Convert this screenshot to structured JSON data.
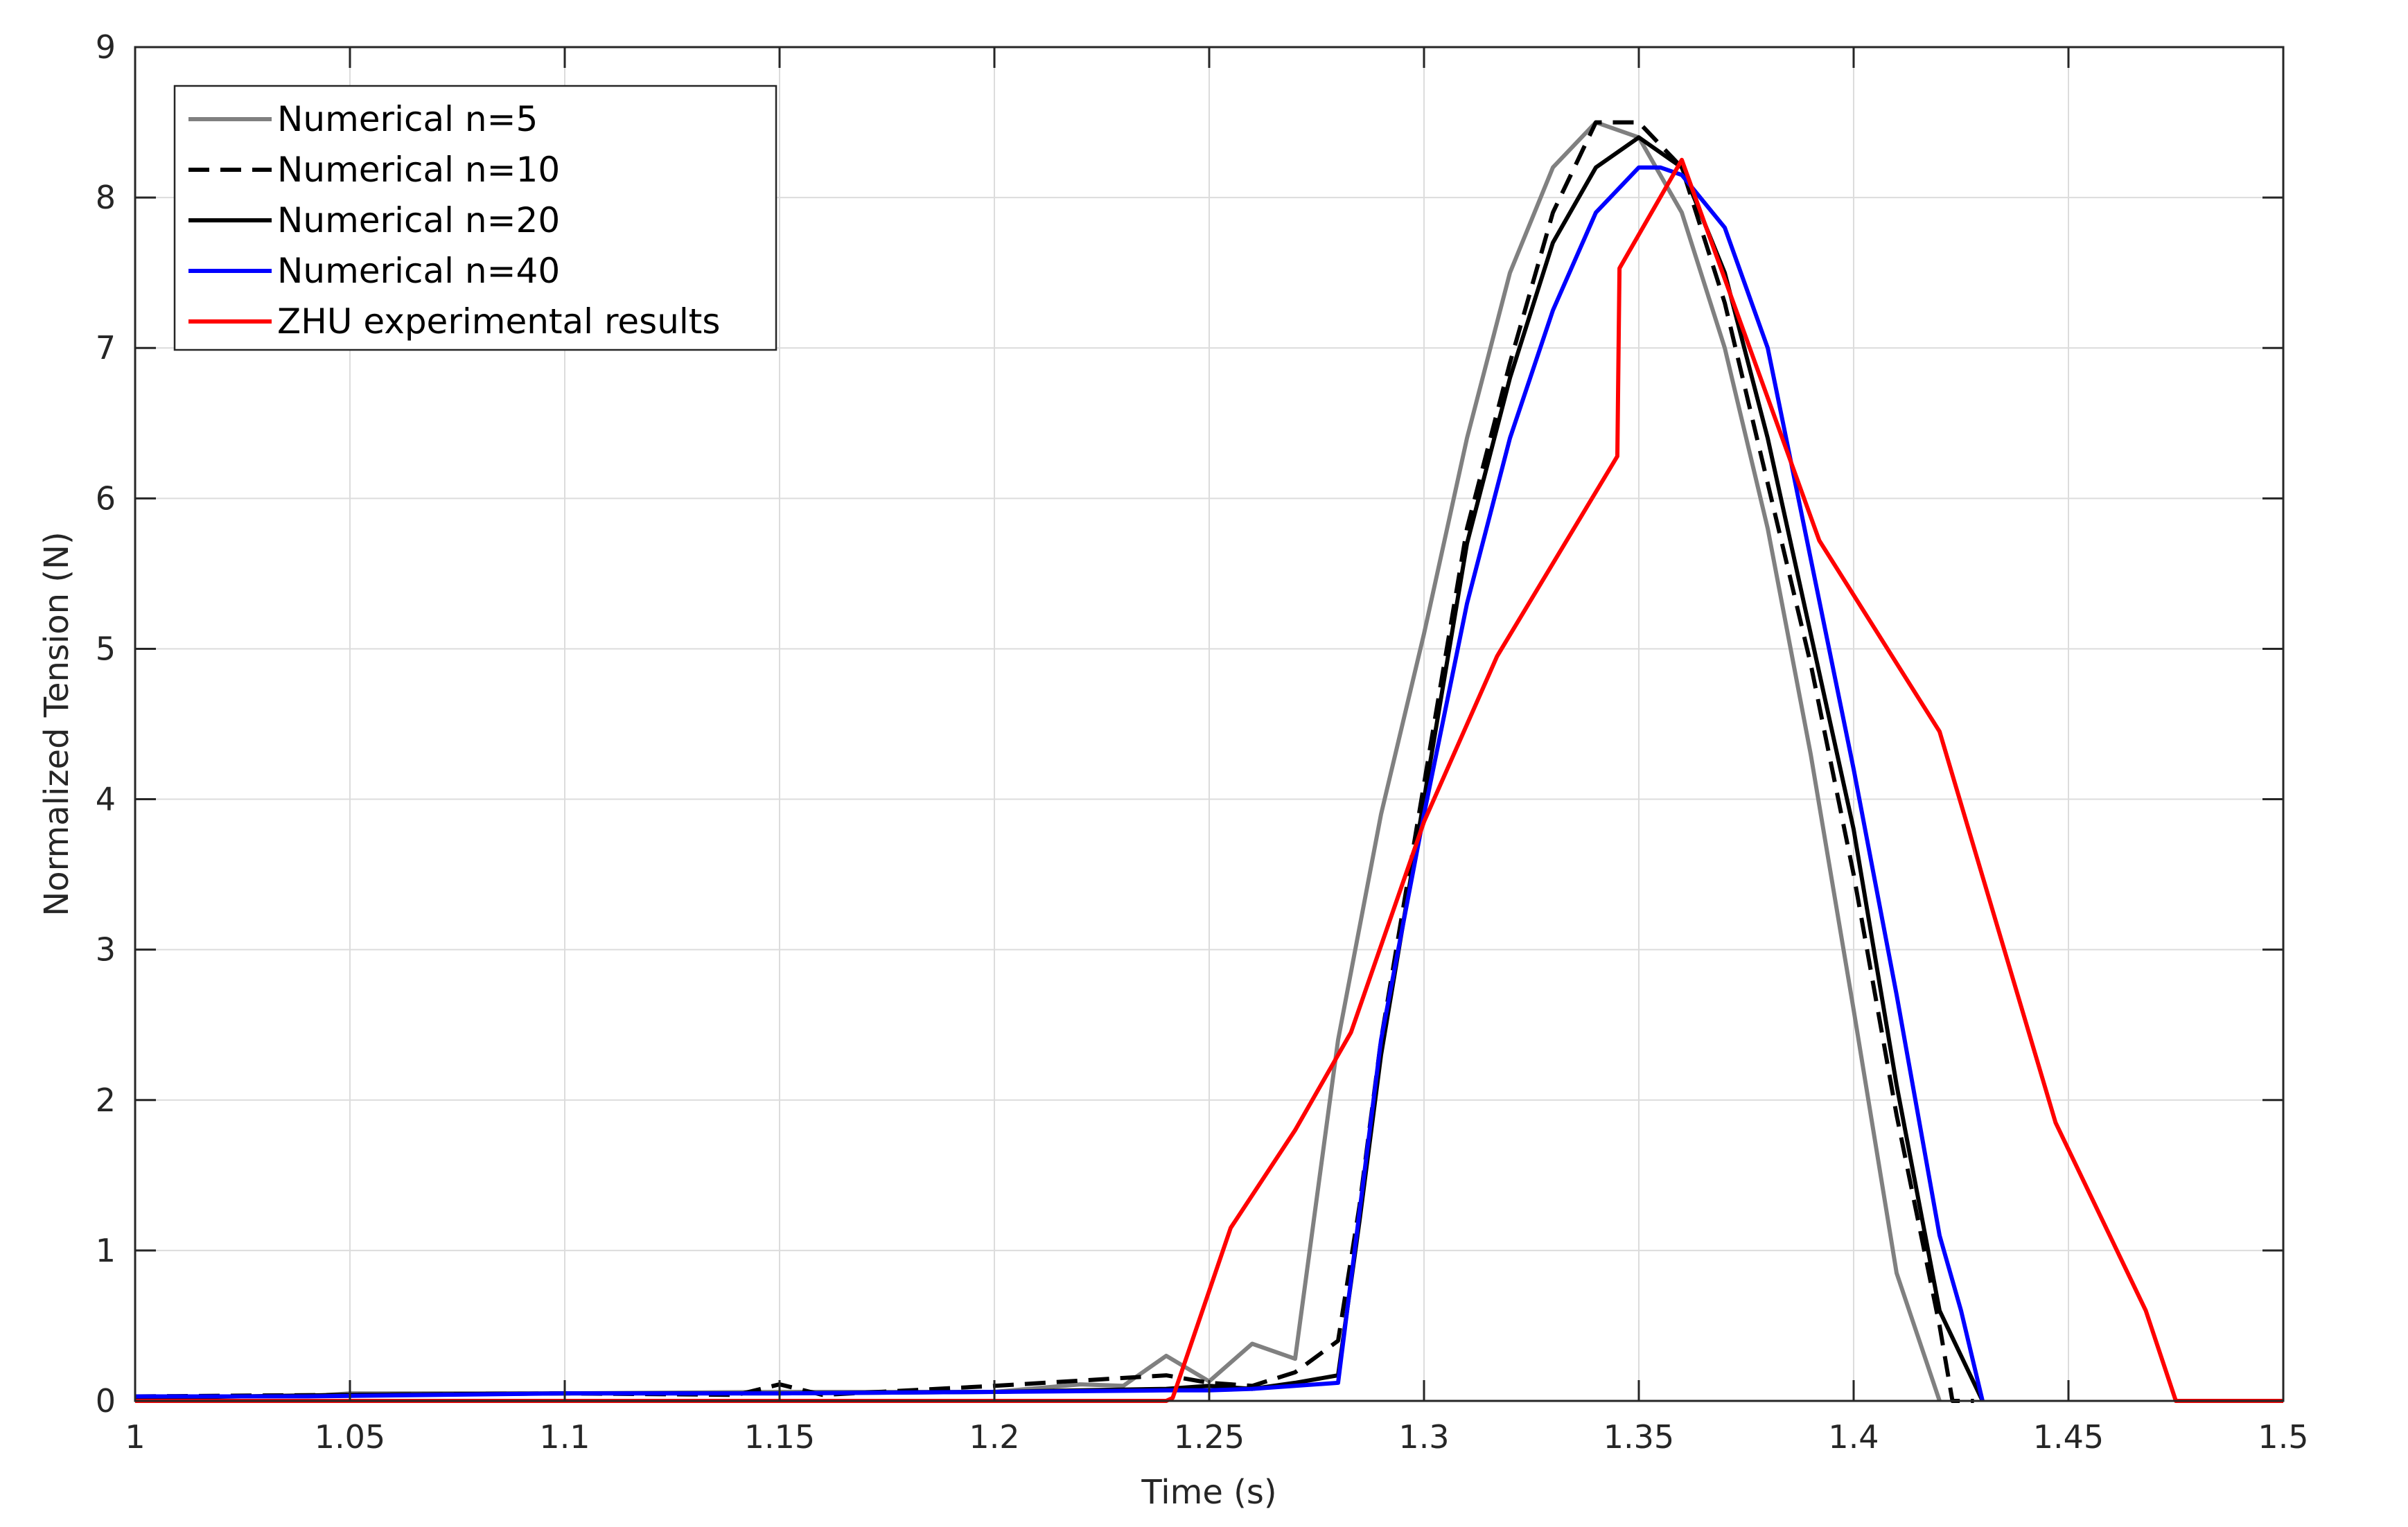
{
  "chart_data": {
    "type": "line",
    "title": "",
    "xlabel": "Time (s)",
    "ylabel": "Normalized Tension (N)",
    "xlim": [
      1,
      1.5
    ],
    "ylim": [
      0,
      9
    ],
    "xticks": [
      1,
      1.05,
      1.1,
      1.15,
      1.2,
      1.25,
      1.3,
      1.35,
      1.4,
      1.45,
      1.5
    ],
    "xtick_labels": [
      "1",
      "1.05",
      "1.1",
      "1.15",
      "1.2",
      "1.25",
      "1.3",
      "1.35",
      "1.4",
      "1.45",
      "1.5"
    ],
    "yticks": [
      0,
      1,
      2,
      3,
      4,
      5,
      6,
      7,
      8,
      9
    ],
    "ytick_labels": [
      "0",
      "1",
      "2",
      "3",
      "4",
      "5",
      "6",
      "7",
      "8",
      "9"
    ],
    "grid": true,
    "legend_position": "top-left",
    "series": [
      {
        "name": "Numerical n=5",
        "color": "#808080",
        "dash": "solid",
        "x": [
          1,
          1.04,
          1.05,
          1.1,
          1.15,
          1.2,
          1.22,
          1.23,
          1.24,
          1.25,
          1.26,
          1.27,
          1.28,
          1.29,
          1.3,
          1.31,
          1.32,
          1.33,
          1.34,
          1.35,
          1.36,
          1.37,
          1.38,
          1.39,
          1.4,
          1.41,
          1.42
        ],
        "y": [
          0.03,
          0.03,
          0.05,
          0.05,
          0.06,
          0.06,
          0.11,
          0.1,
          0.3,
          0.13,
          0.38,
          0.28,
          2.4,
          3.9,
          5.1,
          6.4,
          7.5,
          8.2,
          8.5,
          8.4,
          7.9,
          7.0,
          5.8,
          4.3,
          2.6,
          0.85,
          0.0
        ]
      },
      {
        "name": "Numerical n=10",
        "color": "#000000",
        "dash": "dashed",
        "x": [
          1,
          1.05,
          1.1,
          1.14,
          1.15,
          1.16,
          1.2,
          1.24,
          1.25,
          1.26,
          1.27,
          1.28,
          1.285,
          1.29,
          1.3,
          1.31,
          1.32,
          1.33,
          1.34,
          1.35,
          1.36,
          1.37,
          1.38,
          1.39,
          1.4,
          1.41,
          1.42,
          1.423,
          1.428
        ],
        "y": [
          0.03,
          0.04,
          0.05,
          0.04,
          0.11,
          0.04,
          0.1,
          0.17,
          0.12,
          0.1,
          0.19,
          0.4,
          1.3,
          2.4,
          4.1,
          5.8,
          6.9,
          7.9,
          8.5,
          8.5,
          8.2,
          7.3,
          6.1,
          4.9,
          3.5,
          1.9,
          0.5,
          0.0,
          0.0
        ]
      },
      {
        "name": "Numerical n=20",
        "color": "#000000",
        "dash": "solid",
        "x": [
          1,
          1.05,
          1.1,
          1.15,
          1.2,
          1.24,
          1.25,
          1.26,
          1.27,
          1.28,
          1.285,
          1.29,
          1.3,
          1.31,
          1.32,
          1.33,
          1.34,
          1.35,
          1.36,
          1.37,
          1.38,
          1.39,
          1.4,
          1.41,
          1.42,
          1.43
        ],
        "y": [
          0.02,
          0.04,
          0.05,
          0.05,
          0.06,
          0.08,
          0.1,
          0.08,
          0.12,
          0.17,
          1.2,
          2.3,
          4.0,
          5.7,
          6.8,
          7.7,
          8.2,
          8.4,
          8.2,
          7.5,
          6.4,
          5.1,
          3.8,
          2.1,
          0.6,
          0.0
        ]
      },
      {
        "name": "Numerical n=40",
        "color": "#0000ff",
        "dash": "solid",
        "x": [
          1,
          1.04,
          1.1,
          1.15,
          1.2,
          1.24,
          1.25,
          1.26,
          1.27,
          1.28,
          1.29,
          1.3,
          1.31,
          1.32,
          1.33,
          1.34,
          1.35,
          1.355,
          1.36,
          1.37,
          1.38,
          1.39,
          1.4,
          1.41,
          1.42,
          1.425,
          1.43
        ],
        "y": [
          0.03,
          0.03,
          0.05,
          0.05,
          0.06,
          0.07,
          0.07,
          0.08,
          0.1,
          0.12,
          2.4,
          3.9,
          5.3,
          6.4,
          7.25,
          7.9,
          8.2,
          8.2,
          8.15,
          7.8,
          7.0,
          5.6,
          4.2,
          2.7,
          1.1,
          0.6,
          0.0
        ]
      },
      {
        "name": "ZHU experimental results",
        "color": "#ff0000",
        "dash": "solid",
        "x": [
          1,
          1.24,
          1.2415,
          1.255,
          1.27,
          1.283,
          1.3,
          1.317,
          1.345,
          1.3455,
          1.36,
          1.392,
          1.42,
          1.447,
          1.468,
          1.475,
          1.5
        ],
        "y": [
          0,
          0,
          0.02,
          1.15,
          1.8,
          2.45,
          3.85,
          4.95,
          6.28,
          7.53,
          8.25,
          5.72,
          4.45,
          1.85,
          0.6,
          0.0,
          0.0
        ]
      }
    ]
  }
}
